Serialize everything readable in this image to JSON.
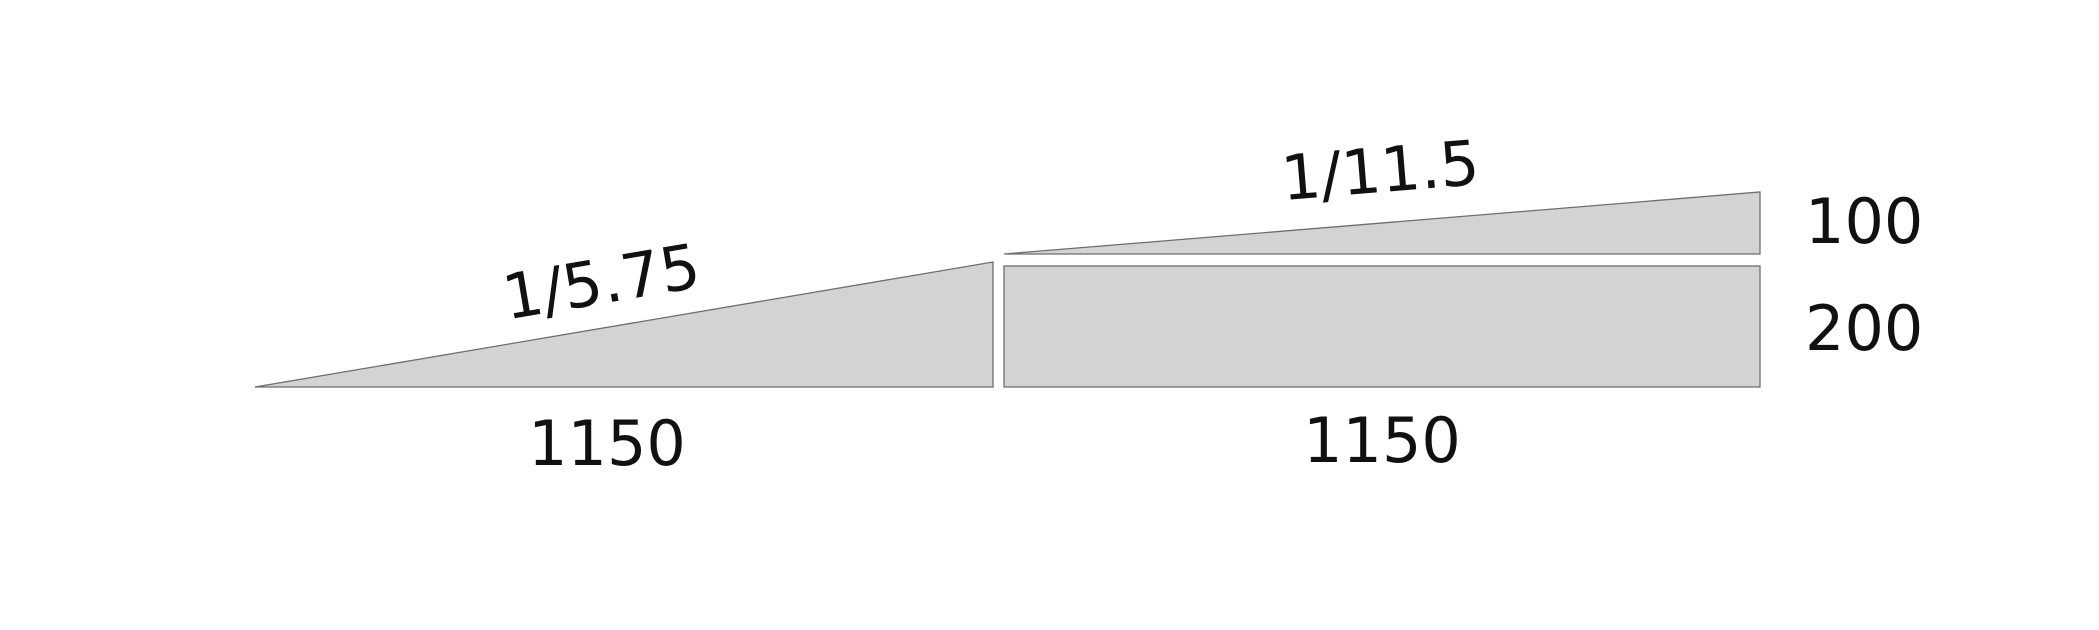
{
  "colors": {
    "fill": "#d3d3d3",
    "stroke": "#6e6e6e",
    "text": "#111111",
    "background": "#ffffff"
  },
  "left_ramp": {
    "slope_label": "1/5.75",
    "length_label": "1150"
  },
  "right_ramp": {
    "slope_label": "1/11.5",
    "length_label": "1150"
  },
  "heights": {
    "upper_label": "100",
    "lower_label": "200"
  }
}
